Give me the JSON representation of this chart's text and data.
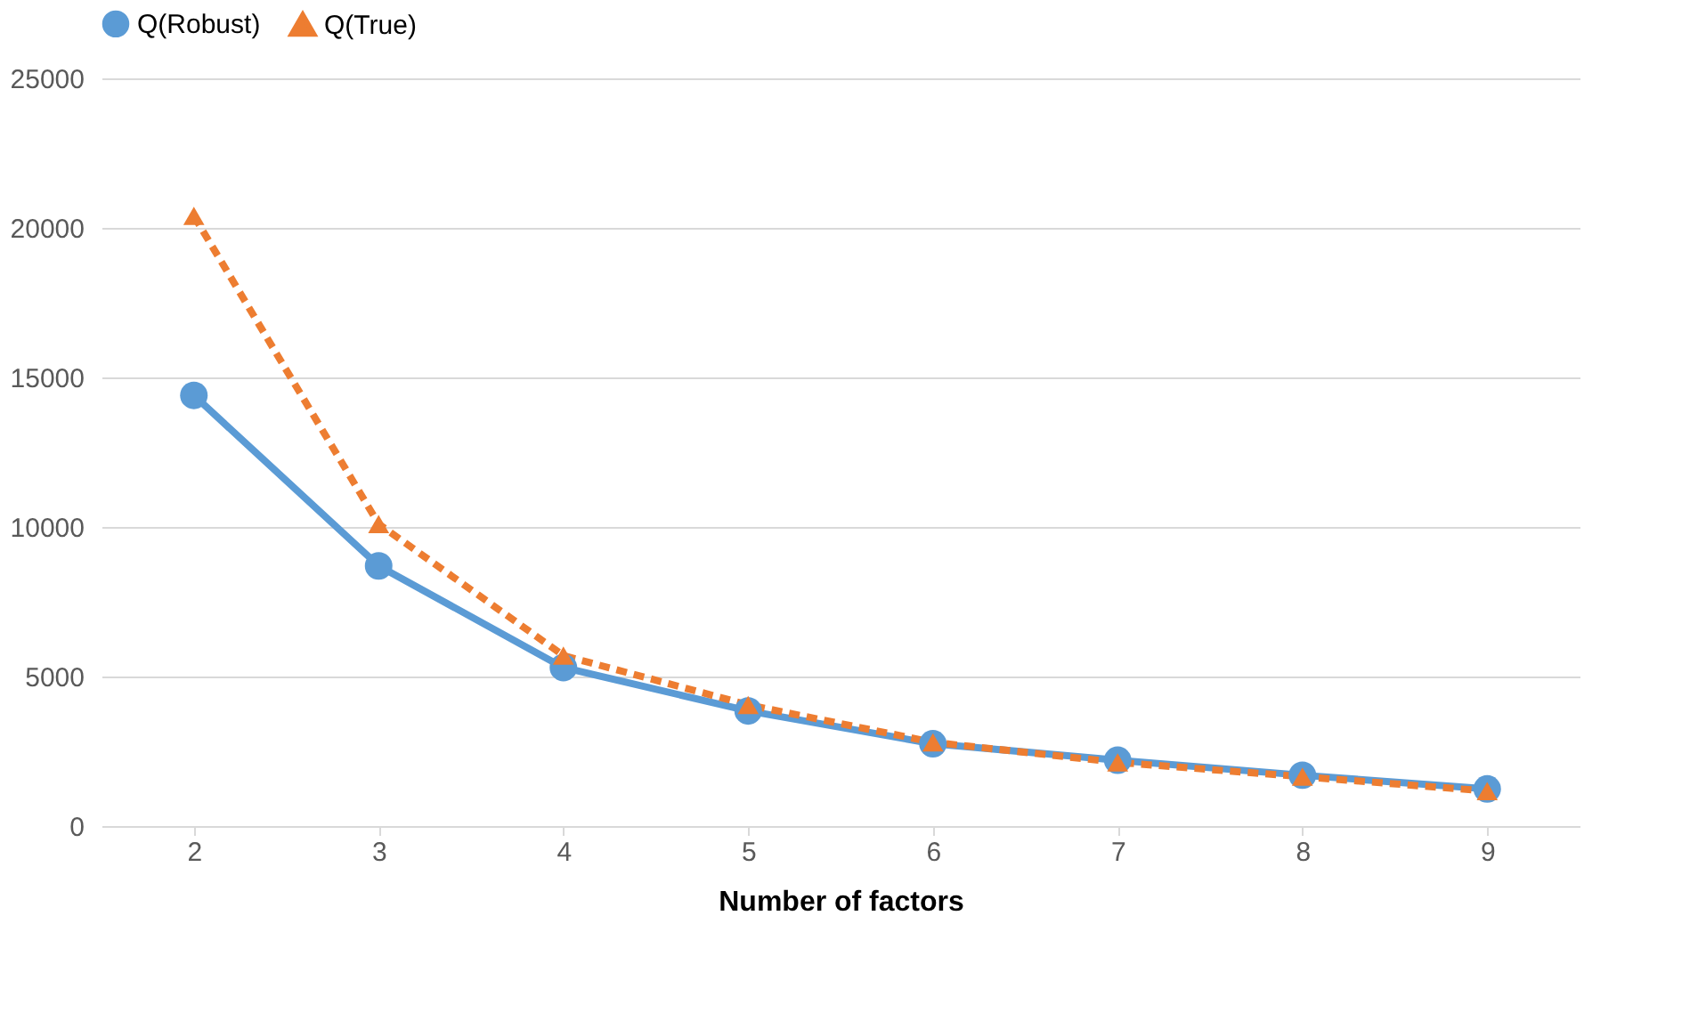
{
  "chart_data": {
    "type": "line",
    "xlabel": "Number of factors",
    "categories": [
      "2",
      "3",
      "4",
      "5",
      "6",
      "7",
      "8",
      "9"
    ],
    "series": [
      {
        "name": "Q(Robust)",
        "color": "#5b9bd5",
        "marker": "circle",
        "line_style": "solid",
        "values": [
          14400,
          8700,
          5300,
          3850,
          2750,
          2200,
          1700,
          1240
        ]
      },
      {
        "name": "Q(True)",
        "color": "#ed7d31",
        "marker": "triangle",
        "line_style": "dashed",
        "values": [
          20400,
          10100,
          5700,
          4050,
          2800,
          2130,
          1650,
          1170
        ]
      }
    ],
    "ylim": [
      0,
      25000
    ],
    "yticks": [
      0,
      5000,
      10000,
      15000,
      20000,
      25000
    ],
    "grid": "y",
    "legend": "top"
  }
}
